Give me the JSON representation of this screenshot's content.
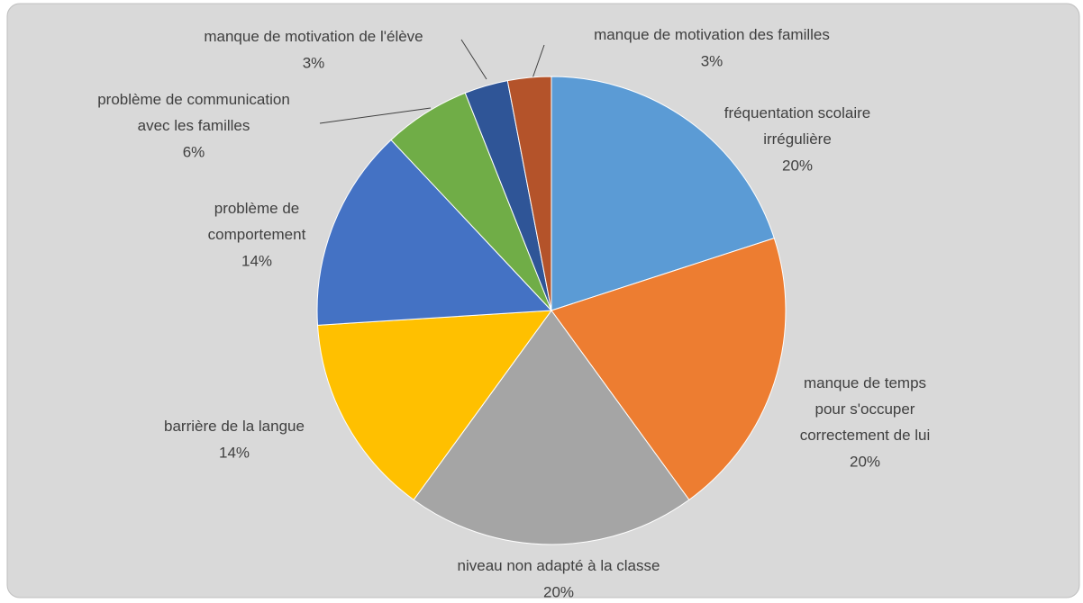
{
  "chart_data": {
    "type": "pie",
    "categories": [
      "fréquentation scolaire\nirrégulière",
      "manque de temps\npour s'occuper\ncorrectement de lui",
      "niveau non adapté à la classe",
      "barrière de la langue",
      "problème de\ncomportement",
      "problème de communication\navec les familles",
      "manque de motivation de l'élève",
      "manque de motivation des familles"
    ],
    "values": [
      20,
      20,
      20,
      14,
      14,
      6,
      3,
      3
    ],
    "value_labels": [
      "20%",
      "20%",
      "20%",
      "14%",
      "14%",
      "6%",
      "3%",
      "3%"
    ],
    "colors": [
      "#5b9bd5",
      "#ed7d31",
      "#a5a5a5",
      "#ffc000",
      "#4472c4",
      "#70ad47",
      "#2f5597",
      "#b4532a"
    ]
  }
}
